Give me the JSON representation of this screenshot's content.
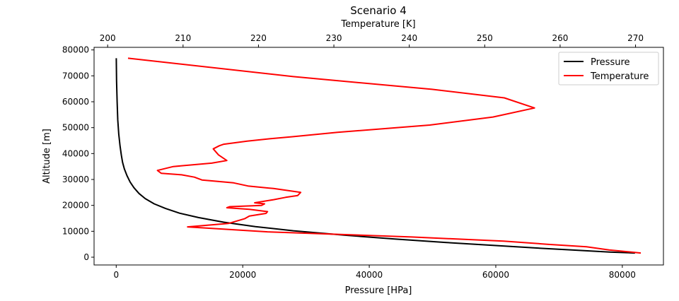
{
  "chart_data": {
    "type": "line",
    "title": "Scenario 4",
    "xlabel": "Pressure [HPa]",
    "x2label": "Temperature [K]",
    "ylabel": "Altitude [m]",
    "xlim": [
      -3500,
      86500
    ],
    "x2lim": [
      198.2,
      273.7
    ],
    "ylim": [
      -3000,
      81000
    ],
    "x_ticks": [
      0,
      20000,
      40000,
      60000,
      80000
    ],
    "x2_ticks": [
      200,
      210,
      220,
      230,
      240,
      250,
      260,
      270
    ],
    "y_ticks": [
      0,
      10000,
      20000,
      30000,
      40000,
      50000,
      60000,
      70000,
      80000
    ],
    "legend_position": "top-right",
    "grid": false,
    "series": [
      {
        "name": "Pressure",
        "axis": "bottom",
        "color": "#000000",
        "x_type": "pressure",
        "points": [
          [
            82000,
            1600
          ],
          [
            78000,
            2000
          ],
          [
            72000,
            2800
          ],
          [
            66000,
            3600
          ],
          [
            60000,
            4500
          ],
          [
            52000,
            5700
          ],
          [
            44000,
            7000
          ],
          [
            36000,
            8500
          ],
          [
            28000,
            10200
          ],
          [
            22000,
            11800
          ],
          [
            17000,
            13500
          ],
          [
            13000,
            15300
          ],
          [
            10000,
            17000
          ],
          [
            7800,
            18800
          ],
          [
            6000,
            20600
          ],
          [
            4600,
            22600
          ],
          [
            3600,
            24600
          ],
          [
            2800,
            26800
          ],
          [
            2200,
            29000
          ],
          [
            1700,
            31500
          ],
          [
            1300,
            34000
          ],
          [
            1000,
            36600
          ],
          [
            800,
            39500
          ],
          [
            600,
            43000
          ],
          [
            400,
            47500
          ],
          [
            250,
            53000
          ],
          [
            140,
            60000
          ],
          [
            60,
            68000
          ],
          [
            10,
            76800
          ]
        ]
      },
      {
        "name": "Temperature",
        "axis": "top",
        "color": "#ff0000",
        "points": [
          [
            270.7,
            1600
          ],
          [
            266.5,
            2800
          ],
          [
            263.5,
            4000
          ],
          [
            258.3,
            5000
          ],
          [
            252.5,
            6200
          ],
          [
            240.3,
            7800
          ],
          [
            221.2,
            9800
          ],
          [
            210.6,
            11700
          ],
          [
            216.0,
            13000
          ],
          [
            218.2,
            14900
          ],
          [
            218.8,
            15900
          ],
          [
            221.0,
            16900
          ],
          [
            221.2,
            17600
          ],
          [
            218.8,
            18500
          ],
          [
            215.8,
            19100
          ],
          [
            216.2,
            19500
          ],
          [
            220.4,
            20000
          ],
          [
            220.8,
            20600
          ],
          [
            219.5,
            21000
          ],
          [
            222.0,
            22200
          ],
          [
            223.6,
            23100
          ],
          [
            225.2,
            23800
          ],
          [
            225.6,
            25000
          ],
          [
            222.0,
            26500
          ],
          [
            218.6,
            27500
          ],
          [
            216.7,
            28700
          ],
          [
            212.5,
            29800
          ],
          [
            211.5,
            30900
          ],
          [
            209.8,
            31800
          ],
          [
            207.1,
            32400
          ],
          [
            206.6,
            33500
          ],
          [
            208.7,
            35000
          ],
          [
            213.8,
            36300
          ],
          [
            215.8,
            37300
          ],
          [
            214.7,
            39500
          ],
          [
            214.0,
            41800
          ],
          [
            214.8,
            43000
          ],
          [
            215.4,
            43600
          ],
          [
            218.5,
            44800
          ],
          [
            221.5,
            45700
          ],
          [
            224.5,
            46500
          ],
          [
            230.5,
            48200
          ],
          [
            242.7,
            51000
          ],
          [
            251.1,
            54100
          ],
          [
            256.6,
            57600
          ],
          [
            252.6,
            61500
          ],
          [
            243.0,
            64800
          ],
          [
            224.6,
            69700
          ],
          [
            202.7,
            76800
          ]
        ]
      }
    ]
  }
}
